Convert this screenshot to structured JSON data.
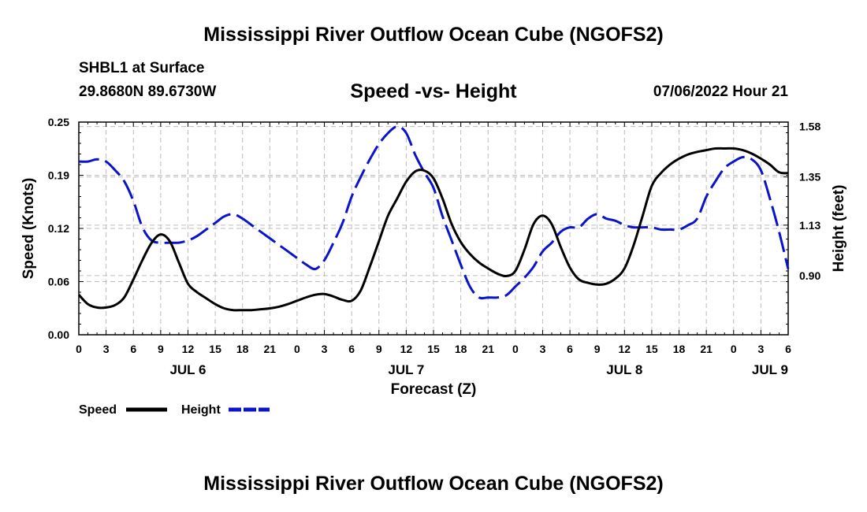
{
  "header": {
    "title": "Mississippi River Outflow Ocean Cube (NGOFS2)",
    "station": "SHBL1 at Surface",
    "coordinates": "29.8680N  89.6730W",
    "subtitle": "Speed -vs- Height",
    "datetime": "07/06/2022 Hour 21"
  },
  "footer": {
    "title": "Mississippi River Outflow Ocean Cube (NGOFS2)"
  },
  "colors": {
    "speed": "#000000",
    "height": "#0a14c8",
    "grid": "#bdbdbd"
  },
  "chart_data": {
    "type": "line",
    "title": "Speed -vs- Height",
    "xlabel": "Forecast (Z)",
    "ylabel": "Speed (Knots)",
    "y2label": "Height (feet)",
    "xlim": [
      0,
      78
    ],
    "ylim": [
      0,
      0.25
    ],
    "y2lim": [
      0.63,
      1.6
    ],
    "x_ticks": [
      {
        "x": 0,
        "label": "0"
      },
      {
        "x": 3,
        "label": "3"
      },
      {
        "x": 6,
        "label": "6"
      },
      {
        "x": 9,
        "label": "9"
      },
      {
        "x": 12,
        "label": "12"
      },
      {
        "x": 15,
        "label": "15"
      },
      {
        "x": 18,
        "label": "18"
      },
      {
        "x": 21,
        "label": "21"
      },
      {
        "x": 24,
        "label": "0"
      },
      {
        "x": 27,
        "label": "3"
      },
      {
        "x": 30,
        "label": "6"
      },
      {
        "x": 33,
        "label": "9"
      },
      {
        "x": 36,
        "label": "12"
      },
      {
        "x": 39,
        "label": "15"
      },
      {
        "x": 42,
        "label": "18"
      },
      {
        "x": 45,
        "label": "21"
      },
      {
        "x": 48,
        "label": "0"
      },
      {
        "x": 51,
        "label": "3"
      },
      {
        "x": 54,
        "label": "6"
      },
      {
        "x": 57,
        "label": "9"
      },
      {
        "x": 60,
        "label": "12"
      },
      {
        "x": 63,
        "label": "15"
      },
      {
        "x": 66,
        "label": "18"
      },
      {
        "x": 69,
        "label": "21"
      },
      {
        "x": 72,
        "label": "0"
      },
      {
        "x": 75,
        "label": "3"
      },
      {
        "x": 78,
        "label": "6"
      }
    ],
    "day_labels": [
      {
        "x": 12,
        "label": "JUL 6"
      },
      {
        "x": 36,
        "label": "JUL 7"
      },
      {
        "x": 60,
        "label": "JUL 8"
      },
      {
        "x": 76,
        "label": "JUL 9"
      }
    ],
    "y_ticks": [
      {
        "v": 0,
        "label": "0.00"
      },
      {
        "v": 0.0625,
        "label": "0.06"
      },
      {
        "v": 0.125,
        "label": "0.12"
      },
      {
        "v": 0.1875,
        "label": "0.19"
      },
      {
        "v": 0.25,
        "label": "0.25"
      }
    ],
    "y2_ticks": [
      {
        "v": 0.9,
        "label": "0.90"
      },
      {
        "v": 1.13,
        "label": "1.13"
      },
      {
        "v": 1.35,
        "label": "1.35"
      },
      {
        "v": 1.58,
        "label": "1.58"
      }
    ],
    "legend": {
      "position": "bottom-left",
      "speed_label": "Speed",
      "height_label": "Height"
    },
    "series": [
      {
        "name": "Speed",
        "axis": "left",
        "style": "solid",
        "x": [
          0,
          1,
          2,
          3,
          4,
          5,
          6,
          7,
          8,
          9,
          10,
          11,
          12,
          13,
          14,
          15,
          16,
          17,
          18,
          19,
          20,
          21,
          22,
          23,
          24,
          25,
          26,
          27,
          28,
          29,
          30,
          31,
          32,
          33,
          34,
          35,
          36,
          37,
          38,
          39,
          40,
          41,
          42,
          43,
          44,
          45,
          46,
          47,
          48,
          49,
          50,
          51,
          52,
          53,
          54,
          55,
          56,
          57,
          58,
          59,
          60,
          61,
          62,
          63,
          64,
          65,
          66,
          67,
          68,
          69,
          70,
          71,
          72,
          73,
          74,
          75,
          76,
          77,
          78
        ],
        "values": [
          0.047,
          0.036,
          0.032,
          0.032,
          0.035,
          0.044,
          0.065,
          0.088,
          0.108,
          0.118,
          0.11,
          0.085,
          0.06,
          0.05,
          0.043,
          0.036,
          0.031,
          0.029,
          0.029,
          0.029,
          0.03,
          0.031,
          0.033,
          0.036,
          0.04,
          0.044,
          0.047,
          0.048,
          0.045,
          0.041,
          0.04,
          0.052,
          0.08,
          0.11,
          0.14,
          0.16,
          0.18,
          0.192,
          0.193,
          0.184,
          0.16,
          0.13,
          0.109,
          0.095,
          0.085,
          0.078,
          0.072,
          0.069,
          0.075,
          0.1,
          0.13,
          0.14,
          0.13,
          0.103,
          0.079,
          0.065,
          0.061,
          0.059,
          0.06,
          0.066,
          0.078,
          0.105,
          0.14,
          0.175,
          0.19,
          0.2,
          0.207,
          0.212,
          0.215,
          0.217,
          0.219,
          0.219,
          0.219,
          0.217,
          0.213,
          0.207,
          0.2,
          0.191,
          0.19
        ]
      },
      {
        "name": "Height",
        "axis": "right",
        "style": "dashed",
        "x": [
          0,
          1,
          2,
          3,
          4,
          5,
          6,
          7,
          8,
          9,
          10,
          11,
          12,
          13,
          14,
          15,
          16,
          17,
          18,
          19,
          20,
          21,
          22,
          23,
          24,
          25,
          26,
          27,
          28,
          29,
          30,
          31,
          32,
          33,
          34,
          35,
          36,
          37,
          38,
          39,
          40,
          41,
          42,
          43,
          44,
          45,
          46,
          47,
          48,
          49,
          50,
          51,
          52,
          53,
          54,
          55,
          56,
          57,
          58,
          59,
          60,
          61,
          62,
          63,
          64,
          65,
          66,
          67,
          68,
          69,
          70,
          71,
          72,
          73,
          74,
          75,
          76,
          77,
          78
        ],
        "values": [
          1.42,
          1.42,
          1.43,
          1.42,
          1.38,
          1.33,
          1.24,
          1.12,
          1.06,
          1.05,
          1.05,
          1.05,
          1.06,
          1.08,
          1.11,
          1.14,
          1.17,
          1.18,
          1.16,
          1.13,
          1.1,
          1.07,
          1.04,
          1.01,
          0.98,
          0.95,
          0.93,
          0.97,
          1.05,
          1.14,
          1.26,
          1.35,
          1.43,
          1.5,
          1.55,
          1.58,
          1.55,
          1.45,
          1.37,
          1.3,
          1.17,
          1.06,
          0.95,
          0.85,
          0.8,
          0.8,
          0.8,
          0.81,
          0.85,
          0.89,
          0.94,
          1.01,
          1.05,
          1.1,
          1.12,
          1.12,
          1.16,
          1.18,
          1.16,
          1.15,
          1.13,
          1.12,
          1.12,
          1.12,
          1.11,
          1.11,
          1.11,
          1.13,
          1.16,
          1.26,
          1.33,
          1.39,
          1.42,
          1.44,
          1.43,
          1.38,
          1.25,
          1.1,
          0.93
        ]
      }
    ]
  }
}
